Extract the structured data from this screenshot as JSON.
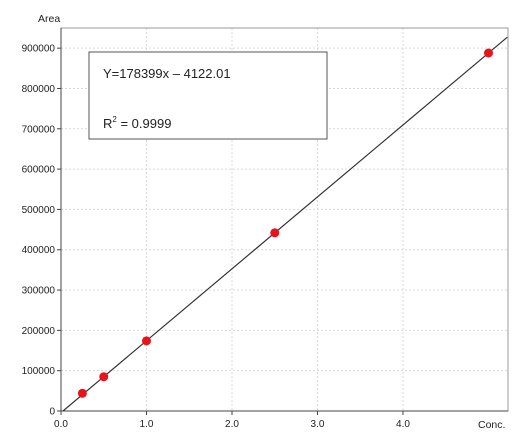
{
  "chart_data": {
    "type": "scatter",
    "ylabel": "Area",
    "xlabel": "Conc.",
    "xlim": [
      0,
      5
    ],
    "ylim": [
      0,
      950000
    ],
    "x_ticks": [
      {
        "value": 0,
        "label": "0.0"
      },
      {
        "value": 1,
        "label": "1.0"
      },
      {
        "value": 2,
        "label": "2.0"
      },
      {
        "value": 3,
        "label": "3.0"
      },
      {
        "value": 4,
        "label": "4.0"
      }
    ],
    "y_ticks": [
      {
        "value": 0,
        "label": "0"
      },
      {
        "value": 100000,
        "label": "100000"
      },
      {
        "value": 200000,
        "label": "200000"
      },
      {
        "value": 300000,
        "label": "300000"
      },
      {
        "value": 400000,
        "label": "400000"
      },
      {
        "value": 500000,
        "label": "500000"
      },
      {
        "value": 600000,
        "label": "600000"
      },
      {
        "value": 700000,
        "label": "700000"
      },
      {
        "value": 800000,
        "label": "800000"
      },
      {
        "value": 900000,
        "label": "900000"
      }
    ],
    "grid": true,
    "points": [
      {
        "x": 0.25,
        "y": 44000
      },
      {
        "x": 0.5,
        "y": 85000
      },
      {
        "x": 1.0,
        "y": 174000
      },
      {
        "x": 2.5,
        "y": 442000
      },
      {
        "x": 5.0,
        "y": 888000
      }
    ],
    "fit": {
      "slope": 178399,
      "intercept": -4122.01
    },
    "equation_text": "Y=178399x – 4122.01",
    "r2_prefix": "R",
    "r2_sup": "2",
    "r2_value": " = 0.9999",
    "point_color": "#e8141b",
    "line_color": "#333333"
  }
}
